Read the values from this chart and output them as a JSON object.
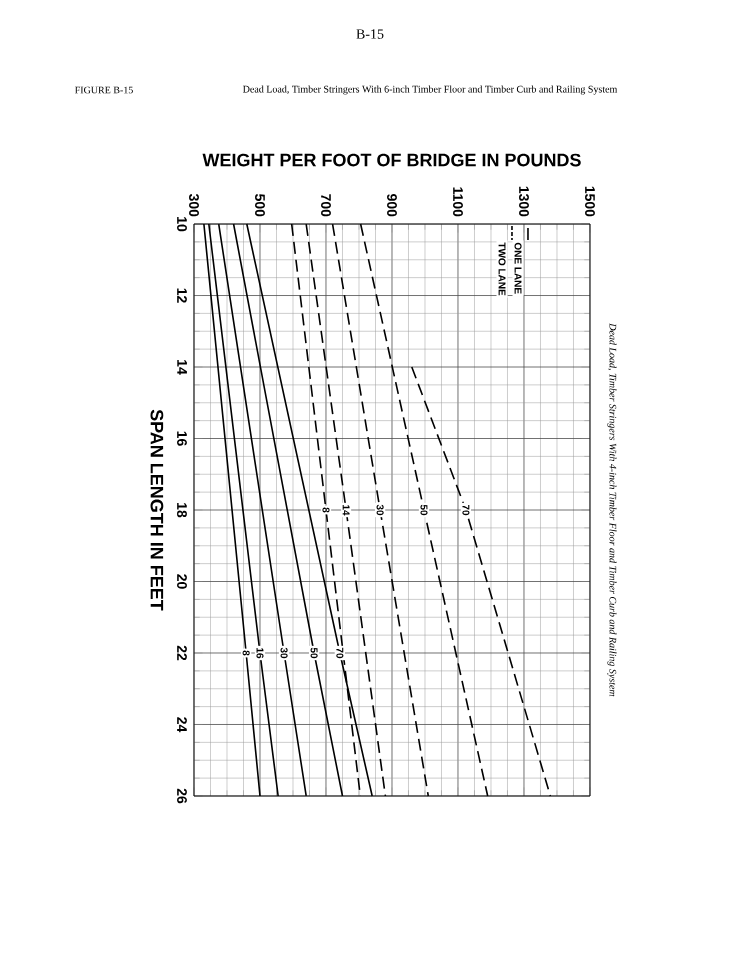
{
  "chart_data": {
    "type": "line",
    "title": "WEIGHT PER FOOT OF BRIDGE IN POUNDS",
    "subtitle": "Dead Load, Timber Stringers With 6-inch Timber Floor and Timber Curb and Railing System",
    "ylabel": "SPAN LENGTH IN FEET",
    "annotations": [
      "B-15",
      "FIGURE B-15",
      "Dead Load, Timber Stringers With 4-inch Timber Floor and Timber Curb and Railing System",
      "ONE LANE",
      "TWO LANE"
    ],
    "xlim": [
      300,
      1500
    ],
    "ylim": [
      26,
      10
    ],
    "xticks": [
      300,
      500,
      700,
      900,
      1100,
      1300,
      1500
    ],
    "yticks": [
      10,
      12,
      14,
      16,
      18,
      20,
      22,
      24,
      26
    ],
    "grid": true,
    "series": [
      {
        "name": "8",
        "color": "#000000",
        "line_style": "solid",
        "x": [
          330,
          458,
          500
        ],
        "values": [
          10,
          22,
          26
        ]
      },
      {
        "name": "16",
        "color": "#000000",
        "line_style": "solid",
        "x": [
          345,
          500,
          555
        ],
        "values": [
          10,
          22,
          26
        ]
      },
      {
        "name": "30",
        "color": "#000000",
        "line_style": "solid",
        "x": [
          375,
          573,
          640
        ],
        "values": [
          10,
          22,
          26
        ]
      },
      {
        "name": "50",
        "color": "#000000",
        "line_style": "solid",
        "x": [
          420,
          664,
          750
        ],
        "values": [
          10,
          22,
          26
        ]
      },
      {
        "name": "70",
        "color": "#000000",
        "line_style": "solid",
        "x": [
          460,
          742,
          840
        ],
        "values": [
          10,
          22,
          26
        ]
      },
      {
        "name": "8",
        "color": "#000000",
        "line_style": "dashed",
        "x": [
          596,
          700,
          804
        ],
        "values": [
          10,
          18,
          26
        ]
      },
      {
        "name": "14",
        "color": "#000000",
        "line_style": "dashed",
        "x": [
          640,
          761,
          880
        ],
        "values": [
          10,
          18,
          26
        ]
      },
      {
        "name": "30",
        "color": "#000000",
        "line_style": "dashed",
        "x": [
          720,
          864,
          1010
        ],
        "values": [
          10,
          18,
          26
        ]
      },
      {
        "name": "50",
        "color": "#000000",
        "line_style": "dashed",
        "x": [
          805,
          997,
          1190
        ],
        "values": [
          10,
          18,
          26
        ]
      },
      {
        "name": "70",
        "color": "#000000",
        "line_style": "dashed",
        "x": [
          960,
          1124,
          1380
        ],
        "values": [
          14,
          18,
          26
        ]
      }
    ]
  }
}
